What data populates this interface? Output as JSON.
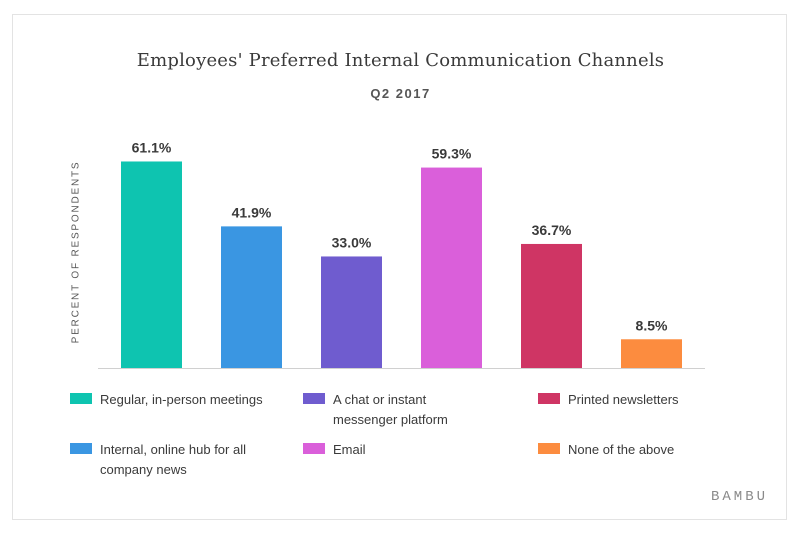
{
  "chart_data": {
    "type": "bar",
    "title": "Employees' Preferred Internal Communication Channels",
    "subtitle": "Q2 2017",
    "ylabel": "PERCENT OF RESPONDENTS",
    "xlabel": "",
    "ylim": [
      0,
      65
    ],
    "grid": false,
    "legend_position": "bottom",
    "categories": [
      "Regular, in-person meetings",
      "Internal, online hub for all company news",
      "A chat or instant messenger platform",
      "Email",
      "Printed newsletters",
      "None of the above"
    ],
    "values": [
      61.1,
      41.9,
      33.0,
      59.3,
      36.7,
      8.5
    ],
    "value_labels": [
      "61.1%",
      "41.9%",
      "33.0%",
      "59.3%",
      "36.7%",
      "8.5%"
    ],
    "colors": [
      "#0ec4b0",
      "#3a96e2",
      "#6f5ccf",
      "#da5fda",
      "#cf3564",
      "#fc8c3f"
    ]
  },
  "legend": [
    {
      "lines": [
        "Regular, in-person meetings"
      ],
      "color": "#0ec4b0"
    },
    {
      "lines": [
        "A chat or instant",
        "messenger platform"
      ],
      "color": "#6f5ccf"
    },
    {
      "lines": [
        "Printed newsletters"
      ],
      "color": "#cf3564"
    },
    {
      "lines": [
        "Internal, online hub for all",
        "company news"
      ],
      "color": "#3a96e2"
    },
    {
      "lines": [
        "Email"
      ],
      "color": "#da5fda"
    },
    {
      "lines": [
        "None of the above"
      ],
      "color": "#fc8c3f"
    }
  ],
  "brand": "BAMBU"
}
